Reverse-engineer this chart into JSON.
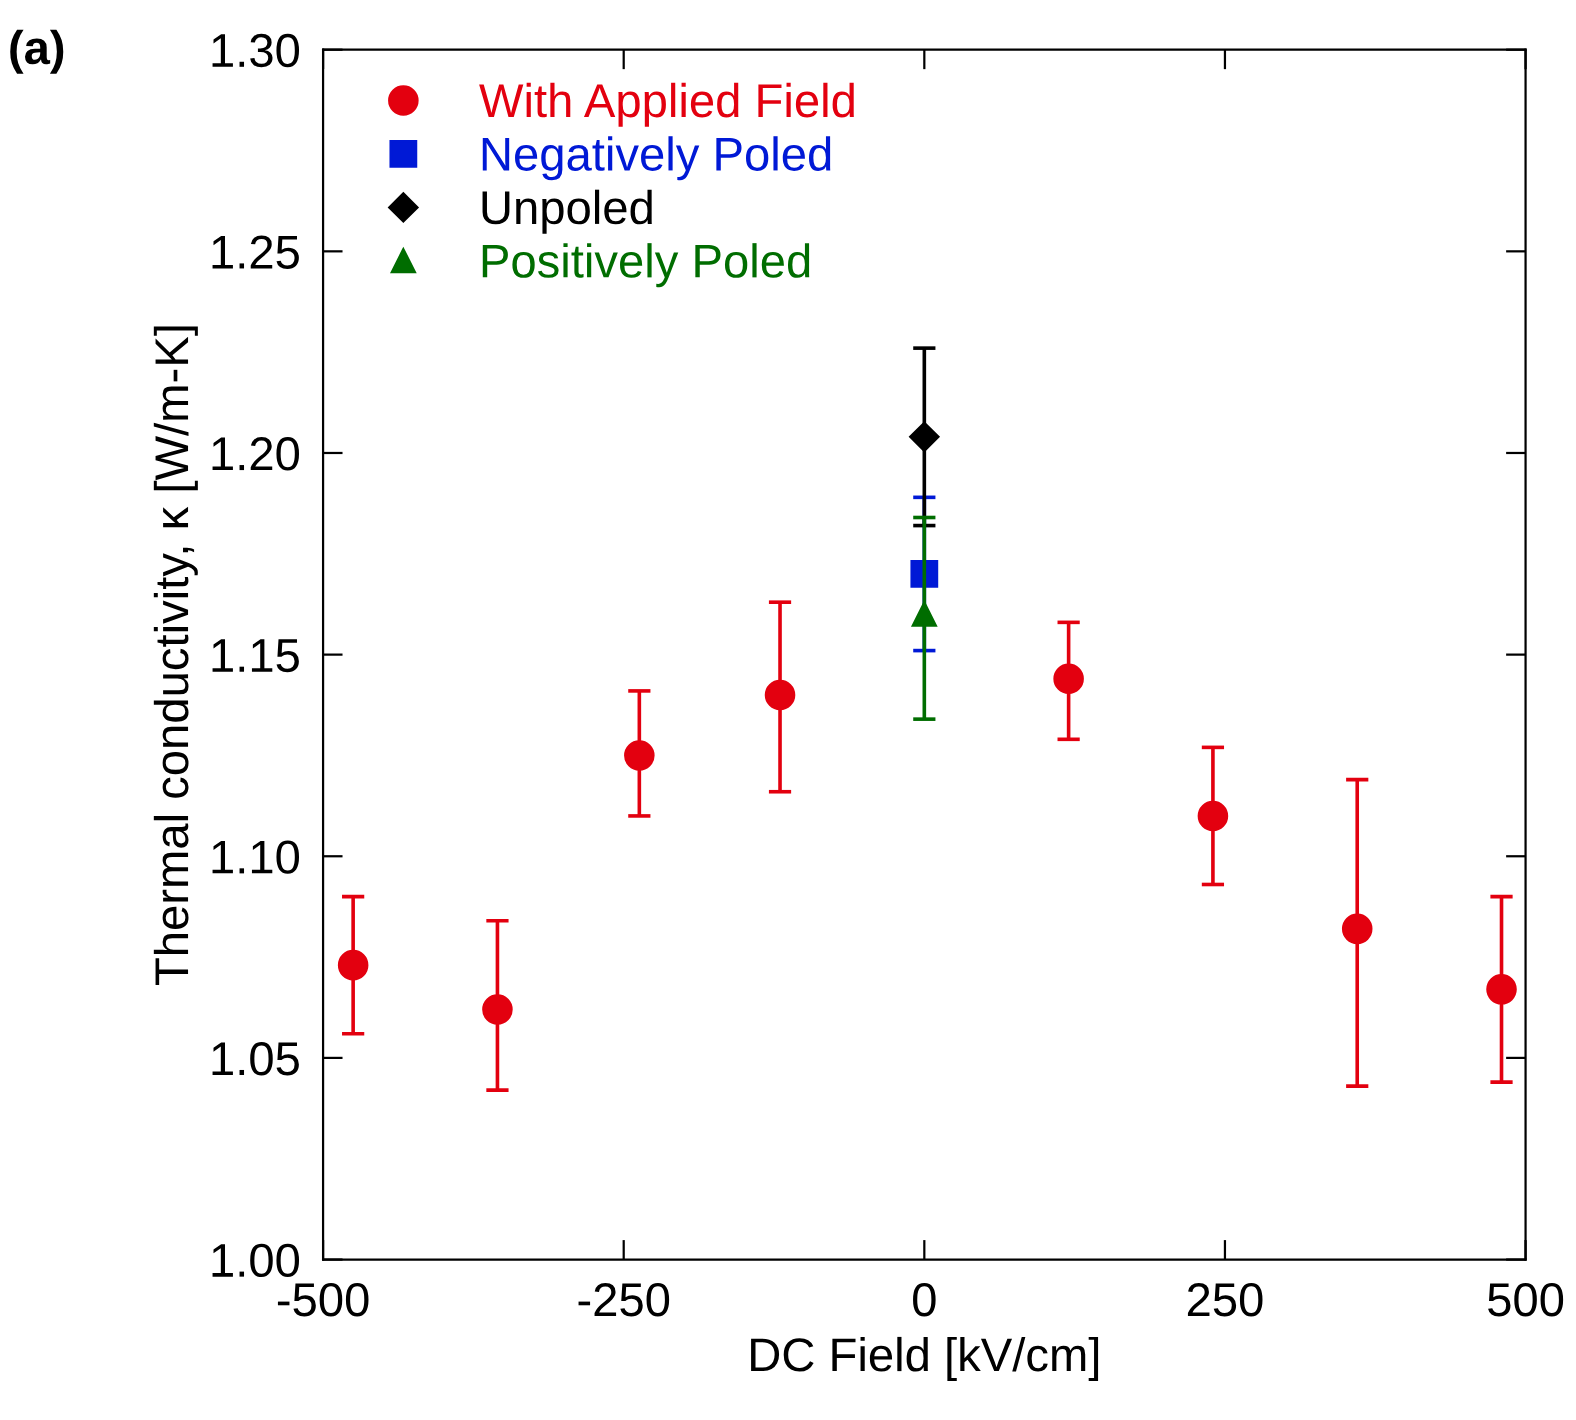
{
  "chart_data": {
    "type": "scatter",
    "xlabel": "DC Field [kV/cm]",
    "ylabel": "Thermal conductivity, κ [W/m-K]",
    "annotations": [
      "(a)"
    ],
    "xlim": [
      -500,
      500
    ],
    "xticks": [
      -500,
      -250,
      0,
      250,
      500
    ],
    "ylim": [
      1.0,
      1.3
    ],
    "yticks": [
      {
        "value": 1.0,
        "label": "1.00"
      },
      {
        "value": 1.05,
        "label": "1.05"
      },
      {
        "value": 1.1,
        "label": "1.10"
      },
      {
        "value": 1.15,
        "label": "1.15"
      },
      {
        "value": 1.2,
        "label": "1.20"
      },
      {
        "value": 1.25,
        "label": "1.25"
      },
      {
        "value": 1.3,
        "label": "1.30"
      }
    ],
    "grid": false,
    "legend": "top left",
    "series": [
      {
        "name": "With Applied Field",
        "color": "#e3000f",
        "marker": "circle",
        "x": [
          -475,
          -355,
          -237,
          -120,
          120,
          240,
          360,
          480
        ],
        "values": [
          1.073,
          1.062,
          1.125,
          1.14,
          1.144,
          1.11,
          1.082,
          1.067
        ],
        "errors": [
          [
            1.056,
            1.09
          ],
          [
            1.042,
            1.084
          ],
          [
            1.11,
            1.141
          ],
          [
            1.116,
            1.163
          ],
          [
            1.129,
            1.158
          ],
          [
            1.093,
            1.127
          ],
          [
            1.043,
            1.119
          ],
          [
            1.044,
            1.09
          ]
        ]
      },
      {
        "name": "Negatively Poled",
        "color": "#0019d6",
        "marker": "square",
        "x": [
          0
        ],
        "values": [
          1.17
        ],
        "errors": [
          [
            1.151,
            1.189
          ]
        ]
      },
      {
        "name": "Unpoled",
        "color": "#000000",
        "marker": "diamond",
        "x": [
          0
        ],
        "values": [
          1.204
        ],
        "errors": [
          [
            1.182,
            1.226
          ]
        ]
      },
      {
        "name": "Positively Poled",
        "color": "#006d00",
        "marker": "triangle",
        "x": [
          0
        ],
        "values": [
          1.16
        ],
        "errors": [
          [
            1.134,
            1.184
          ]
        ]
      }
    ]
  }
}
